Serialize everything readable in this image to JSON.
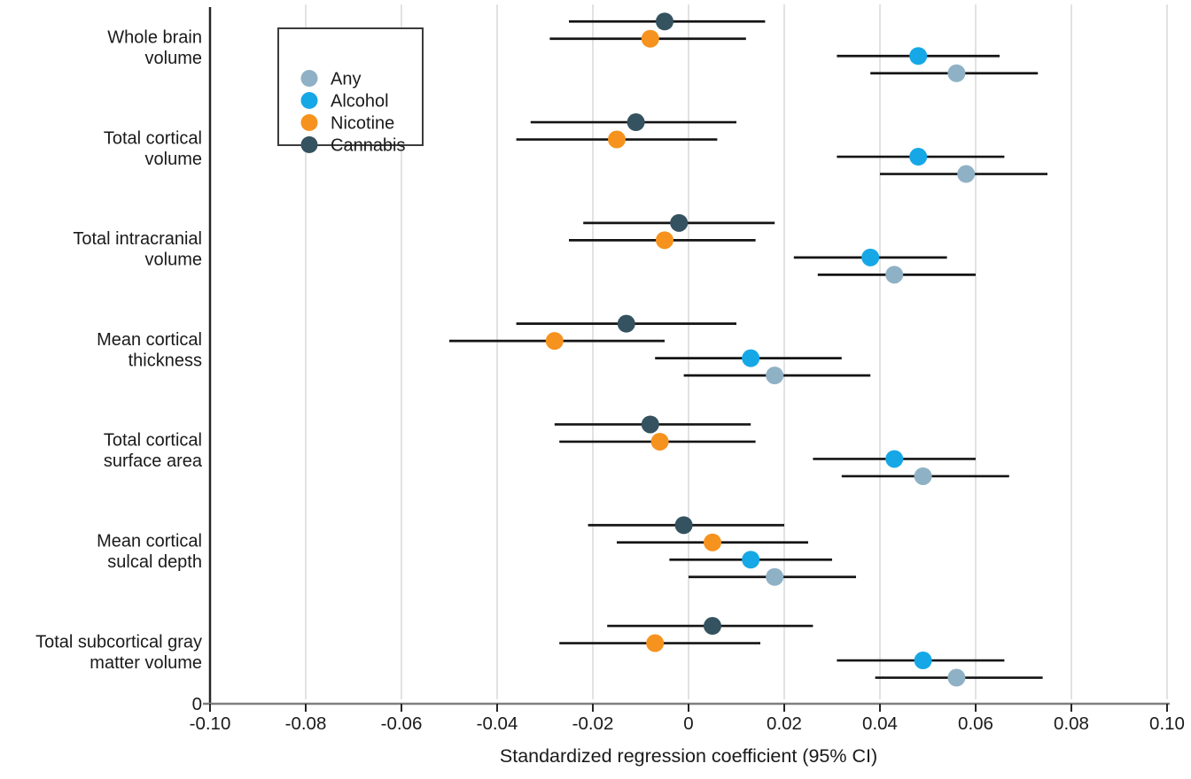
{
  "chart_data": {
    "type": "scatter",
    "variant": "forest-plot-dot-ci",
    "title": "",
    "xlabel": "Standardized regression coefficient (95% CI)",
    "ylabel": "",
    "y_origin_label": "0",
    "xlim": [
      -0.1,
      0.1
    ],
    "xticks": [
      -0.1,
      -0.08,
      -0.06,
      -0.04,
      -0.02,
      0,
      0.02,
      0.04,
      0.06,
      0.08,
      0.1
    ],
    "xtick_labels": [
      "-0.10",
      "-0.08",
      "-0.06",
      "-0.04",
      "-0.02",
      "0",
      "0.02",
      "0.04",
      "0.06",
      "0.08",
      "0.10"
    ],
    "grid": "vertical-light-gray",
    "gridline_color": "#e2e2e2",
    "x_axis_color": "#7f7f7f",
    "y_axis_color": "#262626",
    "ci_line_color": "#141414",
    "legend_position": "top-left-inside",
    "legend_border_color": "#3c3c3c",
    "categories": [
      {
        "label_lines": [
          "Whole brain",
          "volume"
        ]
      },
      {
        "label_lines": [
          "Total cortical",
          "volume"
        ]
      },
      {
        "label_lines": [
          "Total intracranial",
          "volume"
        ]
      },
      {
        "label_lines": [
          "Mean cortical",
          "thickness"
        ]
      },
      {
        "label_lines": [
          "Total cortical",
          "surface area"
        ]
      },
      {
        "label_lines": [
          "Mean cortical",
          "sulcal depth"
        ]
      },
      {
        "label_lines": [
          "Total subcortical gray",
          "matter volume"
        ]
      }
    ],
    "series": [
      {
        "name": "Any",
        "color": "#8FB1C5",
        "points": [
          {
            "est": 0.056,
            "lo": 0.038,
            "hi": 0.073
          },
          {
            "est": 0.058,
            "lo": 0.04,
            "hi": 0.075
          },
          {
            "est": 0.043,
            "lo": 0.027,
            "hi": 0.06
          },
          {
            "est": 0.018,
            "lo": -0.001,
            "hi": 0.038
          },
          {
            "est": 0.049,
            "lo": 0.032,
            "hi": 0.067
          },
          {
            "est": 0.018,
            "lo": 0.0,
            "hi": 0.035
          },
          {
            "est": 0.056,
            "lo": 0.039,
            "hi": 0.074
          }
        ]
      },
      {
        "name": "Alcohol",
        "color": "#16A8E6",
        "points": [
          {
            "est": 0.048,
            "lo": 0.031,
            "hi": 0.065
          },
          {
            "est": 0.048,
            "lo": 0.031,
            "hi": 0.066
          },
          {
            "est": 0.038,
            "lo": 0.022,
            "hi": 0.054
          },
          {
            "est": 0.013,
            "lo": -0.007,
            "hi": 0.032
          },
          {
            "est": 0.043,
            "lo": 0.026,
            "hi": 0.06
          },
          {
            "est": 0.013,
            "lo": -0.004,
            "hi": 0.03
          },
          {
            "est": 0.049,
            "lo": 0.031,
            "hi": 0.066
          }
        ]
      },
      {
        "name": "Nicotine",
        "color": "#F6921E",
        "points": [
          {
            "est": -0.008,
            "lo": -0.029,
            "hi": 0.012
          },
          {
            "est": -0.015,
            "lo": -0.036,
            "hi": 0.006
          },
          {
            "est": -0.005,
            "lo": -0.025,
            "hi": 0.014
          },
          {
            "est": -0.028,
            "lo": -0.05,
            "hi": -0.005
          },
          {
            "est": -0.006,
            "lo": -0.027,
            "hi": 0.014
          },
          {
            "est": 0.005,
            "lo": -0.015,
            "hi": 0.025
          },
          {
            "est": -0.007,
            "lo": -0.027,
            "hi": 0.015
          }
        ]
      },
      {
        "name": "Cannabis",
        "color": "#34525F",
        "points": [
          {
            "est": -0.005,
            "lo": -0.025,
            "hi": 0.016
          },
          {
            "est": -0.011,
            "lo": -0.033,
            "hi": 0.01
          },
          {
            "est": -0.002,
            "lo": -0.022,
            "hi": 0.018
          },
          {
            "est": -0.013,
            "lo": -0.036,
            "hi": 0.01
          },
          {
            "est": -0.008,
            "lo": -0.028,
            "hi": 0.013
          },
          {
            "est": -0.001,
            "lo": -0.021,
            "hi": 0.02
          },
          {
            "est": 0.005,
            "lo": -0.017,
            "hi": 0.026
          }
        ]
      }
    ]
  }
}
